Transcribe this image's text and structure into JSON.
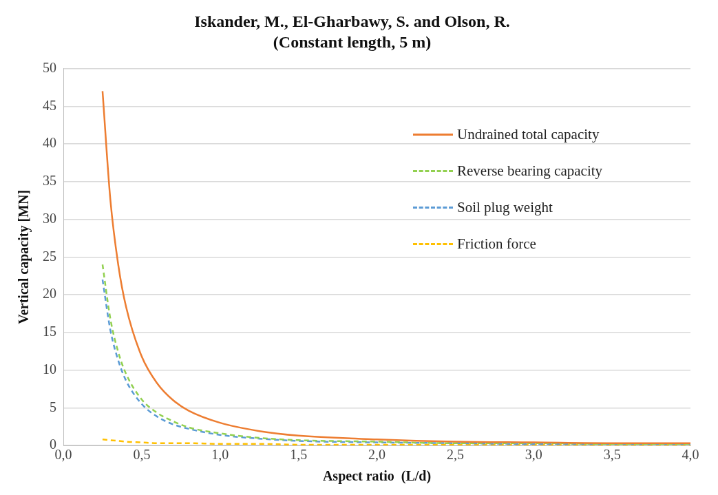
{
  "chart_data": {
    "type": "line",
    "title": "Iskander, M., El-Gharbawy, S. and Olson, R.",
    "subtitle": "(Constant length, 5 m)",
    "xlabel": "Aspect ratio  (L/d)",
    "ylabel": "Vertical capacity [MN]",
    "x": [
      0.25,
      0.3,
      0.35,
      0.4,
      0.5,
      0.6,
      0.7,
      0.8,
      1.0,
      1.25,
      1.5,
      2.0,
      2.5,
      3.0,
      3.5,
      4.0
    ],
    "series": [
      {
        "name": "Undrained total capacity",
        "color": "#ed7d31",
        "line_style": "solid",
        "values": [
          47,
          32.6,
          24,
          18.4,
          11.8,
          8.2,
          6.0,
          4.6,
          3.0,
          1.9,
          1.3,
          0.8,
          0.5,
          0.4,
          0.3,
          0.3
        ]
      },
      {
        "name": "Reverse bearing capacity",
        "color": "#92d050",
        "line_style": "dashed",
        "values": [
          24,
          16.8,
          12.4,
          9.5,
          6.1,
          4.3,
          3.2,
          2.4,
          1.6,
          1.0,
          0.7,
          0.5,
          0.3,
          0.3,
          0.2,
          0.2
        ]
      },
      {
        "name": "Soil plug weight",
        "color": "#5b9bd5",
        "line_style": "dashed",
        "values": [
          22,
          15.3,
          11.3,
          8.6,
          5.5,
          3.8,
          2.8,
          2.2,
          1.4,
          0.9,
          0.6,
          0.4,
          0.3,
          0.2,
          0.2,
          0.2
        ]
      },
      {
        "name": "Friction force",
        "color": "#ffc000",
        "line_style": "dashed",
        "values": [
          0.8,
          0.7,
          0.6,
          0.5,
          0.4,
          0.3,
          0.3,
          0.3,
          0.2,
          0.2,
          0.1,
          0.1,
          0.1,
          0.1,
          0.1,
          0.1
        ]
      }
    ],
    "xlim": [
      0,
      4
    ],
    "xticks": [
      {
        "value": 0,
        "label": "0,0"
      },
      {
        "value": 0.5,
        "label": "0,5"
      },
      {
        "value": 1,
        "label": "1,0"
      },
      {
        "value": 1.5,
        "label": "1,5"
      },
      {
        "value": 2,
        "label": "2,0"
      },
      {
        "value": 2.5,
        "label": "2,5"
      },
      {
        "value": 3,
        "label": "3,0"
      },
      {
        "value": 3.5,
        "label": "3,5"
      },
      {
        "value": 4,
        "label": "4,0"
      }
    ],
    "ylim": [
      0,
      50
    ],
    "yticks": [
      0,
      5,
      10,
      15,
      20,
      25,
      30,
      35,
      40,
      45,
      50
    ],
    "grid": "y",
    "legend": "top right",
    "marker": "none"
  }
}
